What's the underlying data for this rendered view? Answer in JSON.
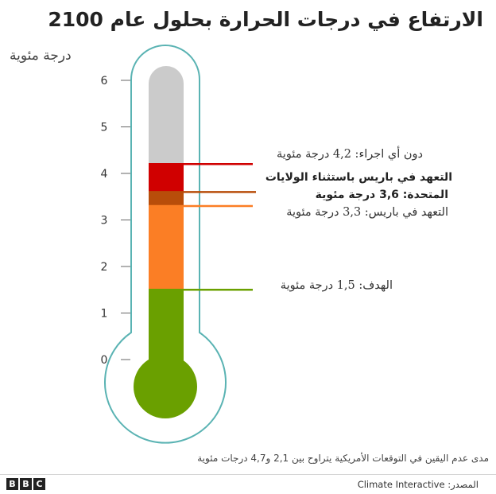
{
  "title": "الارتفاع في درجات الحرارة بحلول عام 2100",
  "colors": {
    "empty": "#cbcbcb",
    "red": "#d00000",
    "dark_orange": "#b84d0a",
    "orange": "#fb7e25",
    "green": "#6aa000",
    "outline": "#5ab3b3",
    "axis": "#666666"
  },
  "chart_data": {
    "type": "bar",
    "ylabel": "درجة مئوية",
    "ylim": [
      0,
      6
    ],
    "yticks": [
      "0",
      "1",
      "2",
      "3",
      "4",
      "5",
      "6"
    ],
    "segments": [
      {
        "from": 0,
        "to": 1.5,
        "color": "green"
      },
      {
        "from": 1.5,
        "to": 3.3,
        "color": "orange"
      },
      {
        "from": 3.3,
        "to": 3.6,
        "color": "dark_orange"
      },
      {
        "from": 3.6,
        "to": 4.2,
        "color": "red"
      },
      {
        "from": 4.2,
        "to": 6.3,
        "color": "empty"
      }
    ],
    "annotations": [
      {
        "value": 4.2,
        "color": "red",
        "label": "دون أي اجراء: 4,2 درجة مئوية",
        "bold": false
      },
      {
        "value": 3.6,
        "color": "dark_orange",
        "label": "التعهد في باريس باستثناء الولايات",
        "label2": "المتحدة: 3,6 درجة مئوية",
        "bold": true
      },
      {
        "value": 3.3,
        "color": "orange",
        "label": "التعهد في باريس: 3,3 درجة مئوية",
        "bold": false
      },
      {
        "value": 1.5,
        "color": "green",
        "label": "الهدف: 1,5 درجة مئوية",
        "bold": false
      }
    ]
  },
  "footnote": "مدى عدم اليقين في التوقعات الأمريكية يتراوح بين 2,1 و4,7 درجات مئوية",
  "source": {
    "label": "المصدر:",
    "value": "Climate Interactive"
  },
  "logo": [
    "B",
    "B",
    "C"
  ]
}
